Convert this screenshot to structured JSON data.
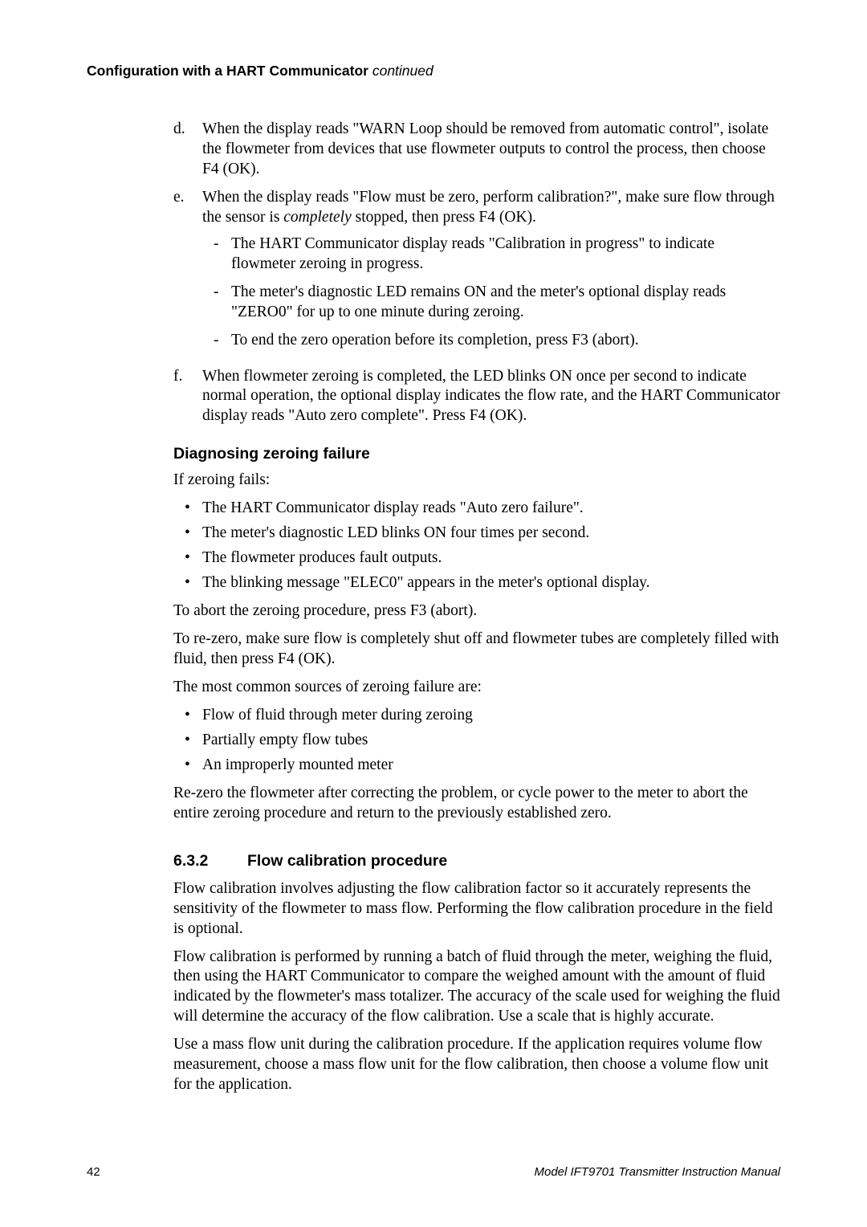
{
  "runningHead": {
    "bold": "Configuration with a HART Communicator",
    "italic": " continued"
  },
  "letterItems": [
    {
      "marker": "d.",
      "text": "When the display reads \"WARN Loop should be removed from automatic control\", isolate the flowmeter from devices that use flowmeter outputs to control the process, then choose F4 (OK)."
    },
    {
      "marker": "e.",
      "textBeforeItalic": "When the display reads \"Flow must be zero, perform calibration?\", make sure flow through the sensor is ",
      "italic": "completely",
      "textAfterItalic": " stopped, then press F4 (OK).",
      "dashes": [
        "The HART Communicator display reads \"Calibration in progress\" to indicate flowmeter zeroing in progress.",
        "The meter's diagnostic LED remains ON and the meter's optional display reads \"ZERO0\" for up to one minute during zeroing.",
        "To end the zero operation before its completion, press F3 (abort)."
      ]
    },
    {
      "marker": "f.",
      "text": "When flowmeter zeroing is completed, the LED blinks ON once per second to indicate normal operation, the optional display indicates the flow rate, and the HART Communicator display reads \"Auto zero complete\". Press F4 (OK)."
    }
  ],
  "diagHeading": "Diagnosing zeroing failure",
  "diagIntro": "If zeroing fails:",
  "diagBullets": [
    "The HART Communicator display reads \"Auto zero failure\".",
    "The meter's diagnostic LED blinks ON four times per second.",
    "The flowmeter produces fault outputs.",
    "The blinking message \"ELEC0\" appears in the meter's optional display."
  ],
  "diagP1": "To abort the zeroing procedure, press F3 (abort).",
  "diagP2": "To re-zero, make sure flow is completely shut off and flowmeter tubes are completely filled with fluid, then press F4 (OK).",
  "diagP3": "The most common sources of zeroing failure are:",
  "causeBullets": [
    "Flow of fluid through meter during zeroing",
    "Partially empty flow tubes",
    "An improperly mounted meter"
  ],
  "diagP4": "Re-zero the flowmeter after correcting the problem, or cycle power to the meter to abort the entire zeroing procedure and return to the previously established zero.",
  "sec": {
    "num": "6.3.2",
    "title": "Flow calibration procedure"
  },
  "secP1": "Flow calibration involves adjusting the flow calibration factor so it accurately represents the sensitivity of the flowmeter to mass flow. Performing the flow calibration procedure in the field is optional.",
  "secP2": "Flow calibration is performed by running a batch of fluid through the meter, weighing the fluid, then using the HART Communicator to compare the weighed amount with the amount of fluid indicated by the flowmeter's mass totalizer. The accuracy of the scale used for weighing the fluid will determine the accuracy of the flow calibration. Use a scale that is highly accurate.",
  "secP3": "Use a mass flow unit during the calibration procedure. If the application requires volume flow measurement, choose a mass flow unit for the flow calibration, then choose a volume flow unit for the application.",
  "footer": {
    "page": "42",
    "manual": "Model IFT9701 Transmitter Instruction Manual"
  }
}
